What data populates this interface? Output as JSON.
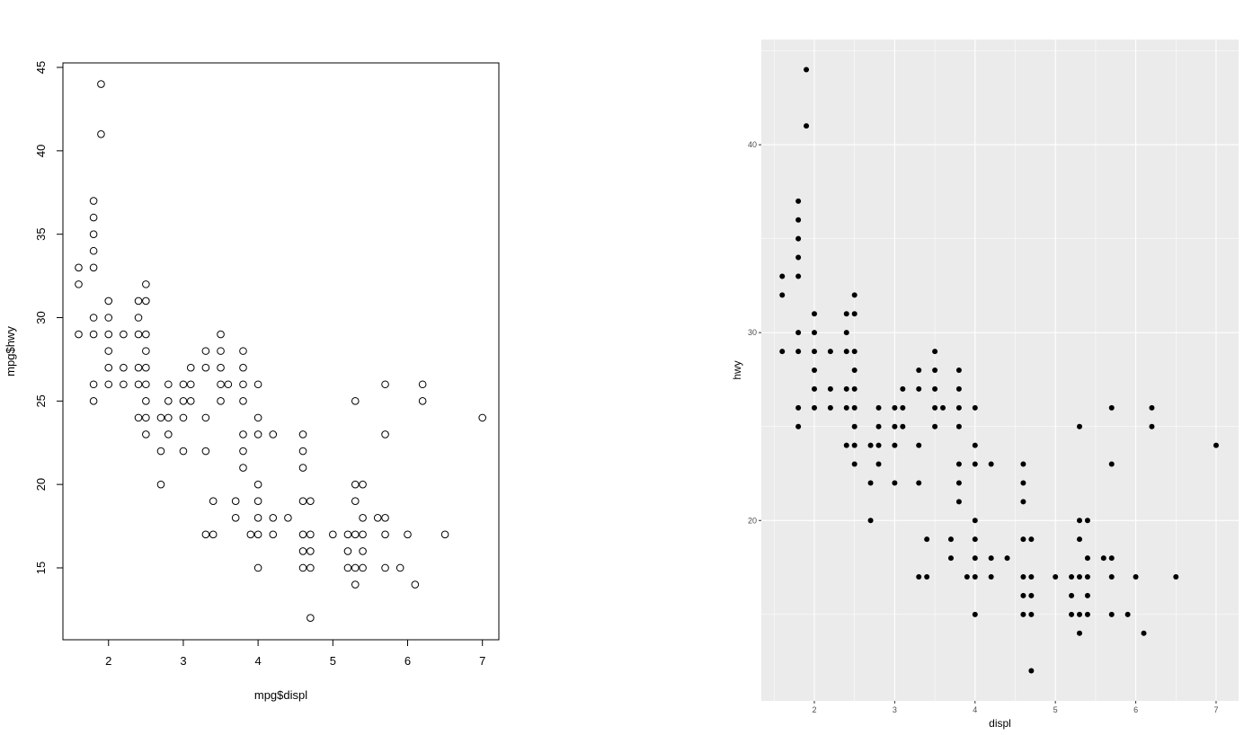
{
  "chart_data": [
    {
      "type": "scatter",
      "style": "base-r",
      "xlabel": "mpg$displ",
      "ylabel": "mpg$hwy",
      "xlim": [
        1.39,
        7.22
      ],
      "ylim": [
        10.69,
        45.27
      ],
      "xticks": [
        2,
        3,
        4,
        5,
        6,
        7
      ],
      "yticks": [
        15,
        20,
        25,
        30,
        35,
        40,
        45
      ],
      "grid": false,
      "marker": "open-circle",
      "color": "#000000",
      "points": [
        [
          1.6,
          33
        ],
        [
          1.6,
          32
        ],
        [
          1.6,
          29
        ],
        [
          1.8,
          37
        ],
        [
          1.8,
          36
        ],
        [
          1.8,
          35
        ],
        [
          1.8,
          34
        ],
        [
          1.8,
          33
        ],
        [
          1.8,
          30
        ],
        [
          1.8,
          29
        ],
        [
          1.8,
          26
        ],
        [
          1.8,
          25
        ],
        [
          1.9,
          44
        ],
        [
          1.9,
          41
        ],
        [
          2.0,
          31
        ],
        [
          2.0,
          30
        ],
        [
          2.0,
          29
        ],
        [
          2.0,
          28
        ],
        [
          2.0,
          27
        ],
        [
          2.0,
          26
        ],
        [
          2.2,
          29
        ],
        [
          2.2,
          27
        ],
        [
          2.2,
          26
        ],
        [
          2.4,
          31
        ],
        [
          2.4,
          30
        ],
        [
          2.4,
          29
        ],
        [
          2.4,
          27
        ],
        [
          2.4,
          26
        ],
        [
          2.4,
          24
        ],
        [
          2.5,
          32
        ],
        [
          2.5,
          31
        ],
        [
          2.5,
          29
        ],
        [
          2.5,
          28
        ],
        [
          2.5,
          27
        ],
        [
          2.5,
          26
        ],
        [
          2.5,
          25
        ],
        [
          2.5,
          24
        ],
        [
          2.5,
          23
        ],
        [
          2.7,
          24
        ],
        [
          2.7,
          22
        ],
        [
          2.7,
          20
        ],
        [
          2.8,
          26
        ],
        [
          2.8,
          25
        ],
        [
          2.8,
          24
        ],
        [
          2.8,
          23
        ],
        [
          3.0,
          26
        ],
        [
          3.0,
          25
        ],
        [
          3.0,
          24
        ],
        [
          3.0,
          22
        ],
        [
          3.1,
          27
        ],
        [
          3.1,
          26
        ],
        [
          3.1,
          25
        ],
        [
          3.3,
          28
        ],
        [
          3.3,
          27
        ],
        [
          3.3,
          24
        ],
        [
          3.3,
          22
        ],
        [
          3.3,
          17
        ],
        [
          3.4,
          19
        ],
        [
          3.4,
          17
        ],
        [
          3.5,
          29
        ],
        [
          3.5,
          28
        ],
        [
          3.5,
          27
        ],
        [
          3.5,
          26
        ],
        [
          3.5,
          25
        ],
        [
          3.6,
          26
        ],
        [
          3.7,
          19
        ],
        [
          3.7,
          18
        ],
        [
          3.8,
          28
        ],
        [
          3.8,
          27
        ],
        [
          3.8,
          26
        ],
        [
          3.8,
          25
        ],
        [
          3.8,
          23
        ],
        [
          3.8,
          22
        ],
        [
          3.8,
          21
        ],
        [
          3.9,
          17
        ],
        [
          4.0,
          26
        ],
        [
          4.0,
          24
        ],
        [
          4.0,
          23
        ],
        [
          4.0,
          20
        ],
        [
          4.0,
          19
        ],
        [
          4.0,
          18
        ],
        [
          4.0,
          17
        ],
        [
          4.0,
          15
        ],
        [
          4.2,
          23
        ],
        [
          4.2,
          18
        ],
        [
          4.2,
          17
        ],
        [
          4.4,
          18
        ],
        [
          4.6,
          23
        ],
        [
          4.6,
          22
        ],
        [
          4.6,
          21
        ],
        [
          4.6,
          19
        ],
        [
          4.6,
          17
        ],
        [
          4.6,
          16
        ],
        [
          4.6,
          15
        ],
        [
          4.7,
          19
        ],
        [
          4.7,
          17
        ],
        [
          4.7,
          16
        ],
        [
          4.7,
          15
        ],
        [
          4.7,
          12
        ],
        [
          5.0,
          17
        ],
        [
          5.2,
          17
        ],
        [
          5.2,
          16
        ],
        [
          5.2,
          15
        ],
        [
          5.3,
          25
        ],
        [
          5.3,
          20
        ],
        [
          5.3,
          19
        ],
        [
          5.3,
          17
        ],
        [
          5.3,
          15
        ],
        [
          5.3,
          14
        ],
        [
          5.4,
          20
        ],
        [
          5.4,
          18
        ],
        [
          5.4,
          17
        ],
        [
          5.4,
          16
        ],
        [
          5.4,
          15
        ],
        [
          5.6,
          18
        ],
        [
          5.7,
          26
        ],
        [
          5.7,
          23
        ],
        [
          5.7,
          18
        ],
        [
          5.7,
          17
        ],
        [
          5.7,
          15
        ],
        [
          5.9,
          15
        ],
        [
          6.0,
          17
        ],
        [
          6.1,
          14
        ],
        [
          6.2,
          26
        ],
        [
          6.2,
          25
        ],
        [
          6.5,
          17
        ],
        [
          7.0,
          24
        ]
      ]
    },
    {
      "type": "scatter",
      "style": "ggplot2",
      "xlabel": "displ",
      "ylabel": "hwy",
      "xlim": [
        1.34,
        7.28
      ],
      "ylim": [
        10.4,
        45.6
      ],
      "xticks": [
        2,
        3,
        4,
        5,
        6,
        7
      ],
      "yticks": [
        20,
        30,
        40
      ],
      "grid": true,
      "panel_color": "#EBEBEB",
      "marker": "filled-circle",
      "color": "#000000",
      "points": [
        [
          1.6,
          33
        ],
        [
          1.6,
          32
        ],
        [
          1.6,
          29
        ],
        [
          1.8,
          37
        ],
        [
          1.8,
          36
        ],
        [
          1.8,
          35
        ],
        [
          1.8,
          34
        ],
        [
          1.8,
          33
        ],
        [
          1.8,
          30
        ],
        [
          1.8,
          29
        ],
        [
          1.8,
          26
        ],
        [
          1.8,
          25
        ],
        [
          1.9,
          44
        ],
        [
          1.9,
          41
        ],
        [
          2.0,
          31
        ],
        [
          2.0,
          30
        ],
        [
          2.0,
          29
        ],
        [
          2.0,
          28
        ],
        [
          2.0,
          27
        ],
        [
          2.0,
          26
        ],
        [
          2.2,
          29
        ],
        [
          2.2,
          27
        ],
        [
          2.2,
          26
        ],
        [
          2.4,
          31
        ],
        [
          2.4,
          30
        ],
        [
          2.4,
          29
        ],
        [
          2.4,
          27
        ],
        [
          2.4,
          26
        ],
        [
          2.4,
          24
        ],
        [
          2.5,
          32
        ],
        [
          2.5,
          31
        ],
        [
          2.5,
          29
        ],
        [
          2.5,
          28
        ],
        [
          2.5,
          27
        ],
        [
          2.5,
          26
        ],
        [
          2.5,
          25
        ],
        [
          2.5,
          24
        ],
        [
          2.5,
          23
        ],
        [
          2.7,
          24
        ],
        [
          2.7,
          22
        ],
        [
          2.7,
          20
        ],
        [
          2.8,
          26
        ],
        [
          2.8,
          25
        ],
        [
          2.8,
          24
        ],
        [
          2.8,
          23
        ],
        [
          3.0,
          26
        ],
        [
          3.0,
          25
        ],
        [
          3.0,
          24
        ],
        [
          3.0,
          22
        ],
        [
          3.1,
          27
        ],
        [
          3.1,
          26
        ],
        [
          3.1,
          25
        ],
        [
          3.3,
          28
        ],
        [
          3.3,
          27
        ],
        [
          3.3,
          24
        ],
        [
          3.3,
          22
        ],
        [
          3.3,
          17
        ],
        [
          3.4,
          19
        ],
        [
          3.4,
          17
        ],
        [
          3.5,
          29
        ],
        [
          3.5,
          28
        ],
        [
          3.5,
          27
        ],
        [
          3.5,
          26
        ],
        [
          3.5,
          25
        ],
        [
          3.6,
          26
        ],
        [
          3.7,
          19
        ],
        [
          3.7,
          18
        ],
        [
          3.8,
          28
        ],
        [
          3.8,
          27
        ],
        [
          3.8,
          26
        ],
        [
          3.8,
          25
        ],
        [
          3.8,
          23
        ],
        [
          3.8,
          22
        ],
        [
          3.8,
          21
        ],
        [
          3.9,
          17
        ],
        [
          4.0,
          26
        ],
        [
          4.0,
          24
        ],
        [
          4.0,
          23
        ],
        [
          4.0,
          20
        ],
        [
          4.0,
          19
        ],
        [
          4.0,
          18
        ],
        [
          4.0,
          17
        ],
        [
          4.0,
          15
        ],
        [
          4.2,
          23
        ],
        [
          4.2,
          18
        ],
        [
          4.2,
          17
        ],
        [
          4.4,
          18
        ],
        [
          4.6,
          23
        ],
        [
          4.6,
          22
        ],
        [
          4.6,
          21
        ],
        [
          4.6,
          19
        ],
        [
          4.6,
          17
        ],
        [
          4.6,
          16
        ],
        [
          4.6,
          15
        ],
        [
          4.7,
          19
        ],
        [
          4.7,
          17
        ],
        [
          4.7,
          16
        ],
        [
          4.7,
          15
        ],
        [
          4.7,
          12
        ],
        [
          5.0,
          17
        ],
        [
          5.2,
          17
        ],
        [
          5.2,
          16
        ],
        [
          5.2,
          15
        ],
        [
          5.3,
          25
        ],
        [
          5.3,
          20
        ],
        [
          5.3,
          19
        ],
        [
          5.3,
          17
        ],
        [
          5.3,
          15
        ],
        [
          5.3,
          14
        ],
        [
          5.4,
          20
        ],
        [
          5.4,
          18
        ],
        [
          5.4,
          17
        ],
        [
          5.4,
          16
        ],
        [
          5.4,
          15
        ],
        [
          5.6,
          18
        ],
        [
          5.7,
          26
        ],
        [
          5.7,
          23
        ],
        [
          5.7,
          18
        ],
        [
          5.7,
          17
        ],
        [
          5.7,
          15
        ],
        [
          5.9,
          15
        ],
        [
          6.0,
          17
        ],
        [
          6.1,
          14
        ],
        [
          6.2,
          26
        ],
        [
          6.2,
          25
        ],
        [
          6.5,
          17
        ],
        [
          7.0,
          24
        ]
      ]
    }
  ]
}
